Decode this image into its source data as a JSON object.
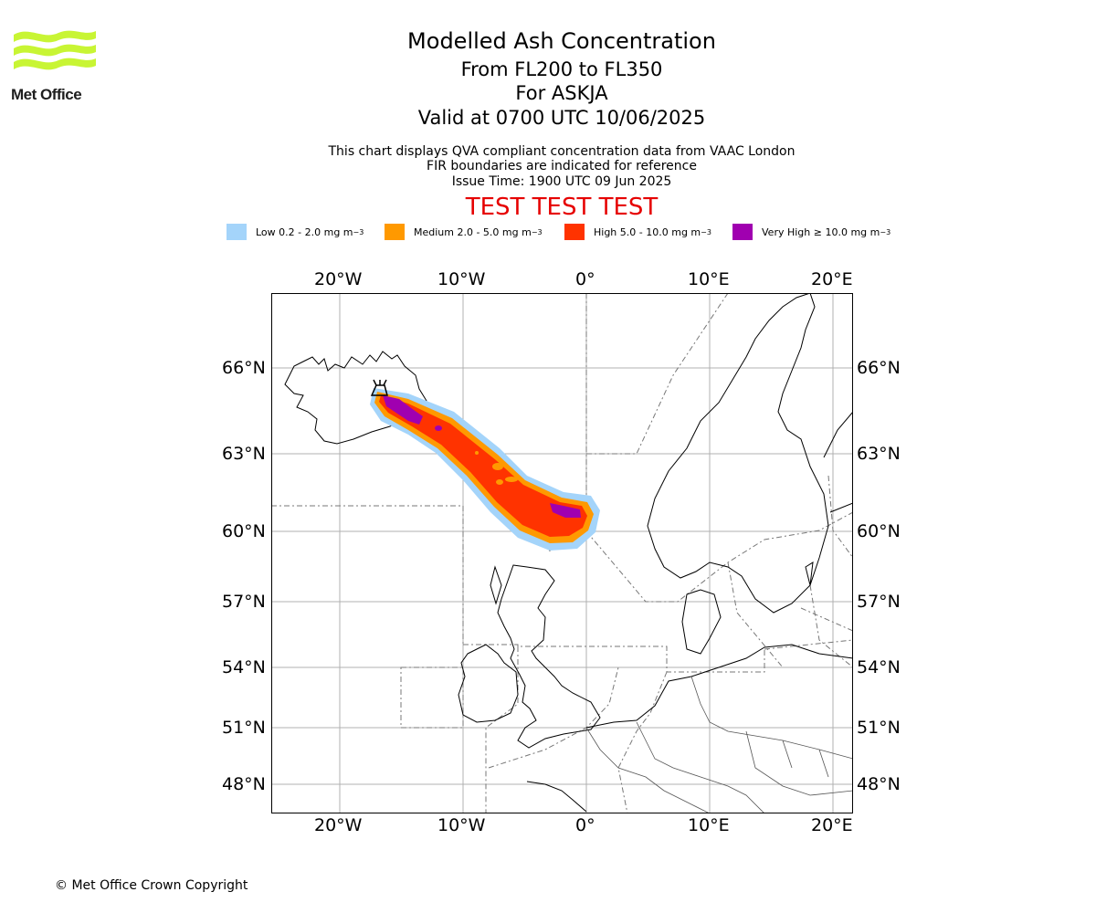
{
  "logo": {
    "text": "Met Office",
    "icon": "met-office-waves-logo",
    "color": "#c8f534"
  },
  "header": {
    "title": "Modelled Ash Concentration",
    "levels": "From FL200 to FL350",
    "volcano": "For ASKJA",
    "valid": "Valid at 0700 UTC 10/06/2025",
    "desc1": "This chart displays QVA compliant concentration data from VAAC London",
    "desc2": "FIR boundaries are indicated for reference",
    "issue": "Issue Time: 1900 UTC 09 Jun 2025",
    "test": "TEST TEST TEST"
  },
  "legend": [
    {
      "label": "Low 0.2 - 2.0 mg m",
      "sup": "−3",
      "color": "#a4d4fa"
    },
    {
      "label": "Medium 2.0 - 5.0 mg m",
      "sup": "−3",
      "color": "#ff9900"
    },
    {
      "label": "High 5.0 - 10.0 mg m",
      "sup": "−3",
      "color": "#ff3300"
    },
    {
      "label": "Very High  ≥  10.0 mg m",
      "sup": "−3",
      "color": "#a000b0"
    }
  ],
  "axes": {
    "lon_labels": [
      "20°W",
      "10°W",
      "0°",
      "10°E",
      "20°E"
    ],
    "lat_labels": [
      "66°N",
      "63°N",
      "60°N",
      "57°N",
      "54°N",
      "51°N",
      "48°N"
    ]
  },
  "footer": {
    "copyright": "© Met Office Crown Copyright"
  }
}
